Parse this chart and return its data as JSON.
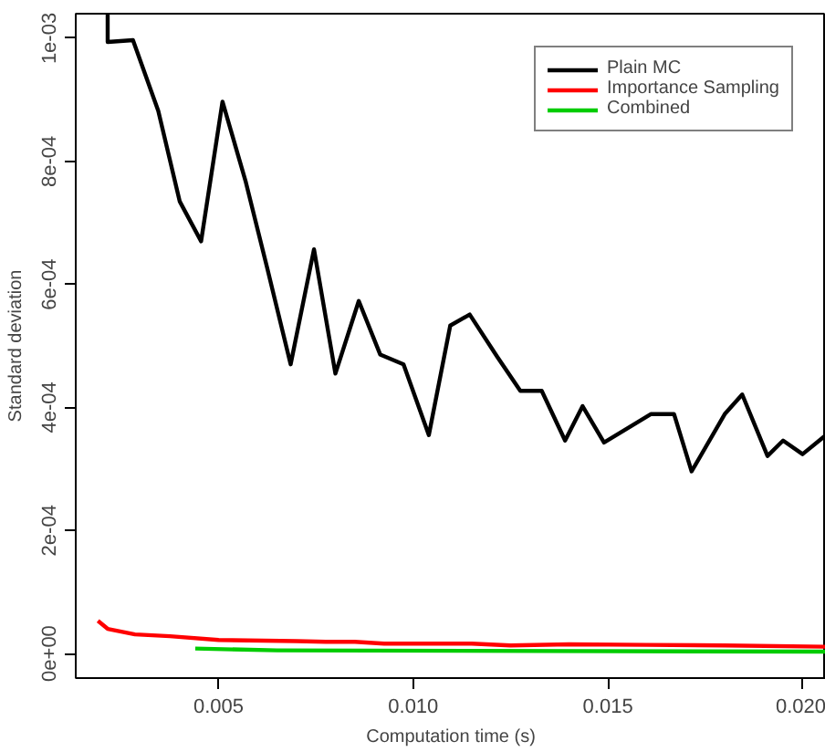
{
  "chart_data": {
    "type": "line",
    "xlabel": "Computation time (s)",
    "ylabel": "Standard deviation",
    "xlim": [
      0.00133,
      0.0206
    ],
    "ylim": [
      -4e-05,
      0.00104
    ],
    "xticks": [
      {
        "value": 0.005,
        "label": "0.005"
      },
      {
        "value": 0.01,
        "label": "0.010"
      },
      {
        "value": 0.015,
        "label": "0.015"
      },
      {
        "value": 0.02,
        "label": "0.020"
      }
    ],
    "yticks": [
      {
        "value": 0,
        "label": "0e+00"
      },
      {
        "value": 0.0002,
        "label": "2e-04"
      },
      {
        "value": 0.0004,
        "label": "4e-04"
      },
      {
        "value": 0.0006,
        "label": "6e-04"
      },
      {
        "value": 0.0008,
        "label": "8e-04"
      },
      {
        "value": 0.001,
        "label": "1e-03"
      }
    ],
    "grid": false,
    "legend": "top right",
    "marker": "none",
    "line_style": "solid",
    "series": [
      {
        "name": "Plain MC",
        "color": "#000000",
        "x": [
          0.00215,
          0.00215,
          0.0028,
          0.00345,
          0.004,
          0.00455,
          0.0051,
          0.0057,
          0.00625,
          0.00685,
          0.00745,
          0.008,
          0.0086,
          0.00915,
          0.00975,
          0.0104,
          0.01095,
          0.01145,
          0.01215,
          0.01275,
          0.0133,
          0.0139,
          0.01435,
          0.0149,
          0.0161,
          0.0167,
          0.01715,
          0.018,
          0.01845,
          0.0191,
          0.0195,
          0.02,
          0.0206
        ],
        "values": [
          0.00104,
          0.000994,
          0.000997,
          0.000882,
          0.000735,
          0.00067,
          0.000897,
          0.000766,
          0.000626,
          0.00047,
          0.000657,
          0.000455,
          0.000573,
          0.000486,
          0.00047,
          0.000355,
          0.000533,
          0.000551,
          0.000483,
          0.000427,
          0.000427,
          0.000346,
          0.000402,
          0.000343,
          0.000389,
          0.000389,
          0.000296,
          0.000389,
          0.000421,
          0.000321,
          0.000346,
          0.000324,
          0.000355
        ]
      },
      {
        "name": "Importance Sampling",
        "color": "#ff0000",
        "x": [
          0.0019,
          0.00215,
          0.00285,
          0.00375,
          0.005,
          0.007,
          0.00775,
          0.0085,
          0.00925,
          0.0115,
          0.0125,
          0.014,
          0.016,
          0.018,
          0.0206
        ],
        "values": [
          5.3e-05,
          4e-05,
          3.1e-05,
          2.8e-05,
          2.2e-05,
          2e-05,
          1.9e-05,
          1.9e-05,
          1.6e-05,
          1.6e-05,
          1.3e-05,
          1.5e-05,
          1.4e-05,
          1.3e-05,
          1.1e-05
        ]
      },
      {
        "name": "Combined",
        "color": "#00cc00",
        "x": [
          0.0044,
          0.0065,
          0.0206
        ],
        "values": [
          8e-06,
          5e-06,
          3e-06
        ]
      }
    ]
  }
}
